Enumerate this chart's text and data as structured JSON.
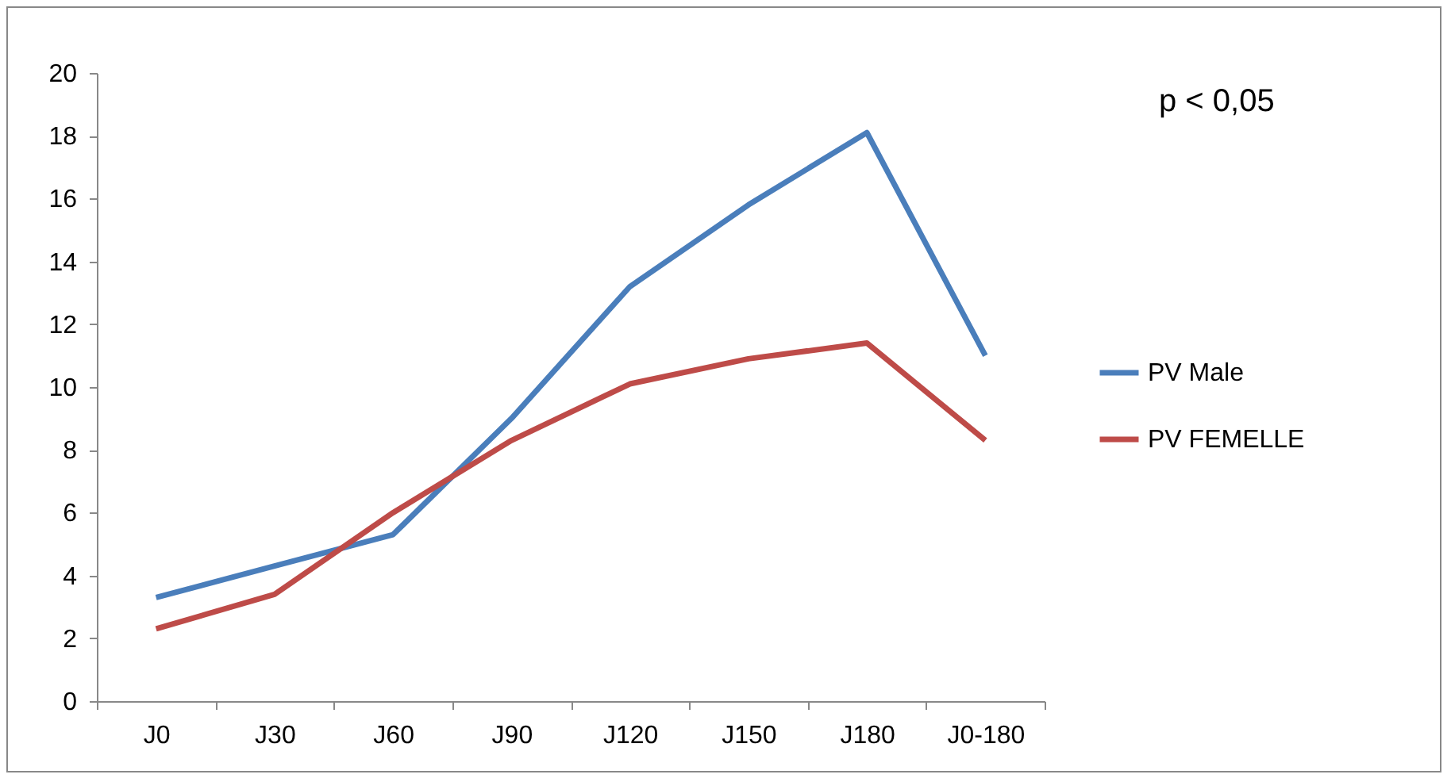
{
  "chart_data": {
    "type": "line",
    "categories": [
      "J0",
      "J30",
      "J60",
      "J90",
      "J120",
      "J150",
      "J180",
      "J0-180"
    ],
    "series": [
      {
        "name": "PV Male",
        "color": "#4a7ebb",
        "values": [
          3.3,
          4.3,
          5.3,
          9.0,
          13.2,
          15.8,
          18.1,
          11.0
        ]
      },
      {
        "name": "PV FEMELLE",
        "color": "#be4b48",
        "values": [
          2.3,
          3.4,
          6.0,
          8.3,
          10.1,
          10.9,
          11.4,
          8.3
        ]
      }
    ],
    "ylim": [
      0,
      20
    ],
    "yticks": [
      0,
      2,
      4,
      6,
      8,
      10,
      12,
      14,
      16,
      18,
      20
    ],
    "grid": false,
    "legend": "right",
    "marker": "none",
    "line_style": "solid",
    "annotations": [
      "p < 0,05"
    ]
  }
}
